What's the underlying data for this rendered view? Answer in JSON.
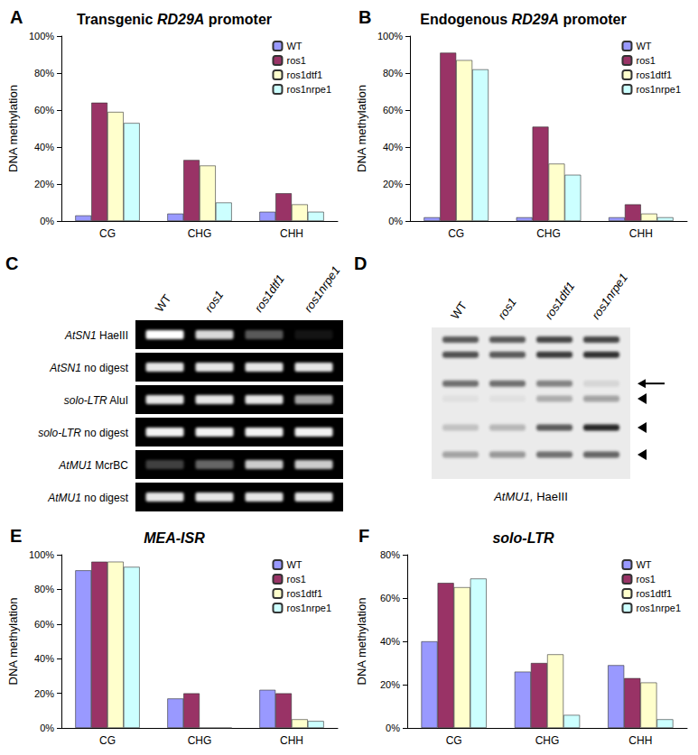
{
  "chart_data": [
    {
      "panel": "A",
      "type": "bar",
      "title": "Transgenic RD29A promoter",
      "y_label": "DNA methylation",
      "categories": [
        "CG",
        "CHG",
        "CHH"
      ],
      "series": [
        {
          "name": "WT",
          "color": "#9999ff",
          "values": [
            3,
            4,
            5
          ]
        },
        {
          "name": "ros1",
          "color": "#993366",
          "values": [
            64,
            33,
            15
          ]
        },
        {
          "name": "ros1dtf1",
          "color": "#ffffcc",
          "values": [
            59,
            30,
            9
          ]
        },
        {
          "name": "ros1nrpe1",
          "color": "#ccffff",
          "values": [
            53,
            10,
            5
          ]
        }
      ],
      "ylim": [
        0,
        100
      ],
      "yticks": [
        {
          "value": 0,
          "label": "0%"
        },
        {
          "value": 20,
          "label": "20%"
        },
        {
          "value": 40,
          "label": "40%"
        },
        {
          "value": 60,
          "label": "60%"
        },
        {
          "value": 80,
          "label": "80%"
        },
        {
          "value": 100,
          "label": "100%"
        }
      ],
      "grid": false,
      "legend": "upper right"
    },
    {
      "panel": "B",
      "type": "bar",
      "title": "Endogenous RD29A promoter",
      "y_label": "DNA methylation",
      "categories": [
        "CG",
        "CHG",
        "CHH"
      ],
      "series": [
        {
          "name": "WT",
          "color": "#9999ff",
          "values": [
            2,
            2,
            2
          ]
        },
        {
          "name": "ros1",
          "color": "#993366",
          "values": [
            91,
            51,
            9
          ]
        },
        {
          "name": "ros1dtf1",
          "color": "#ffffcc",
          "values": [
            87,
            31,
            4
          ]
        },
        {
          "name": "ros1nrpe1",
          "color": "#ccffff",
          "values": [
            82,
            25,
            2
          ]
        }
      ],
      "ylim": [
        0,
        100
      ],
      "yticks": [
        {
          "value": 0,
          "label": "0%"
        },
        {
          "value": 20,
          "label": "20%"
        },
        {
          "value": 40,
          "label": "40%"
        },
        {
          "value": 60,
          "label": "60%"
        },
        {
          "value": 80,
          "label": "80%"
        },
        {
          "value": 100,
          "label": "100%"
        }
      ],
      "grid": false,
      "legend": "upper right"
    },
    {
      "panel": "E",
      "type": "bar",
      "title": "MEA-ISR",
      "y_label": "DNA methylation",
      "categories": [
        "CG",
        "CHG",
        "CHH"
      ],
      "series": [
        {
          "name": "WT",
          "color": "#9999ff",
          "values": [
            91,
            17,
            22
          ]
        },
        {
          "name": "ros1",
          "color": "#993366",
          "values": [
            96,
            20,
            20
          ]
        },
        {
          "name": "ros1dtf1",
          "color": "#ffffcc",
          "values": [
            96,
            0,
            5
          ]
        },
        {
          "name": "ros1nrpe1",
          "color": "#ccffff",
          "values": [
            93,
            0,
            4
          ]
        }
      ],
      "ylim": [
        0,
        100
      ],
      "yticks": [
        {
          "value": 0,
          "label": "0%"
        },
        {
          "value": 20,
          "label": "20%"
        },
        {
          "value": 40,
          "label": "40%"
        },
        {
          "value": 60,
          "label": "60%"
        },
        {
          "value": 80,
          "label": "80%"
        },
        {
          "value": 100,
          "label": "100%"
        }
      ],
      "grid": false,
      "legend": "upper right"
    },
    {
      "panel": "F",
      "type": "bar",
      "title": "solo-LTR",
      "y_label": "DNA methylation",
      "categories": [
        "CG",
        "CHG",
        "CHH"
      ],
      "series": [
        {
          "name": "WT",
          "color": "#9999ff",
          "values": [
            40,
            26,
            29
          ]
        },
        {
          "name": "ros1",
          "color": "#993366",
          "values": [
            67,
            30,
            23
          ]
        },
        {
          "name": "ros1dtf1",
          "color": "#ffffcc",
          "values": [
            65,
            34,
            21
          ]
        },
        {
          "name": "ros1nrpe1",
          "color": "#ccffff",
          "values": [
            69,
            6,
            4
          ]
        }
      ],
      "ylim": [
        0,
        80
      ],
      "yticks": [
        {
          "value": 0,
          "label": "0%"
        },
        {
          "value": 20,
          "label": "20%"
        },
        {
          "value": 40,
          "label": "40%"
        },
        {
          "value": 60,
          "label": "60%"
        },
        {
          "value": 80,
          "label": "80%"
        }
      ],
      "grid": false,
      "legend": "upper right"
    }
  ],
  "gels": [
    {
      "panel": "C",
      "lanes": [
        "WT",
        "ros1",
        "ros1dtf1",
        "ros1nrpe1"
      ],
      "rows": [
        {
          "label": "AtSN1 HaeIII",
          "bands": [
            1.0,
            0.85,
            0.35,
            0.08
          ]
        },
        {
          "label": "AtSN1 no digest",
          "bands": [
            0.9,
            0.9,
            0.9,
            0.9
          ]
        },
        {
          "label": "solo-LTR AluI",
          "bands": [
            0.9,
            0.9,
            0.9,
            0.65
          ]
        },
        {
          "label": "solo-LTR no digest",
          "bands": [
            0.95,
            0.95,
            0.95,
            0.95
          ]
        },
        {
          "label": "AtMU1 McrBC",
          "bands": [
            0.25,
            0.4,
            0.8,
            0.8
          ]
        },
        {
          "label": "AtMU1 no digest",
          "bands": [
            0.9,
            0.9,
            0.9,
            0.9
          ]
        }
      ]
    },
    {
      "panel": "D",
      "lanes": [
        "WT",
        "ros1",
        "ros1dtf1",
        "ros1nrpe1"
      ],
      "caption": "AtMU1, HaeIII",
      "bands": [
        {
          "migration": 0.08,
          "intensity": [
            0.7,
            0.7,
            0.8,
            0.8
          ]
        },
        {
          "migration": 0.18,
          "intensity": [
            0.75,
            0.7,
            0.85,
            0.9
          ]
        },
        {
          "migration": 0.37,
          "intensity": [
            0.6,
            0.6,
            0.5,
            0.1
          ],
          "marker": "arrow"
        },
        {
          "migration": 0.47,
          "intensity": [
            0.05,
            0.05,
            0.3,
            0.35
          ],
          "marker": "arrowhead"
        },
        {
          "migration": 0.66,
          "intensity": [
            0.2,
            0.25,
            0.7,
            0.95
          ],
          "marker": "arrowhead"
        },
        {
          "migration": 0.84,
          "intensity": [
            0.35,
            0.4,
            0.6,
            0.65
          ],
          "marker": "arrowhead"
        }
      ]
    }
  ]
}
